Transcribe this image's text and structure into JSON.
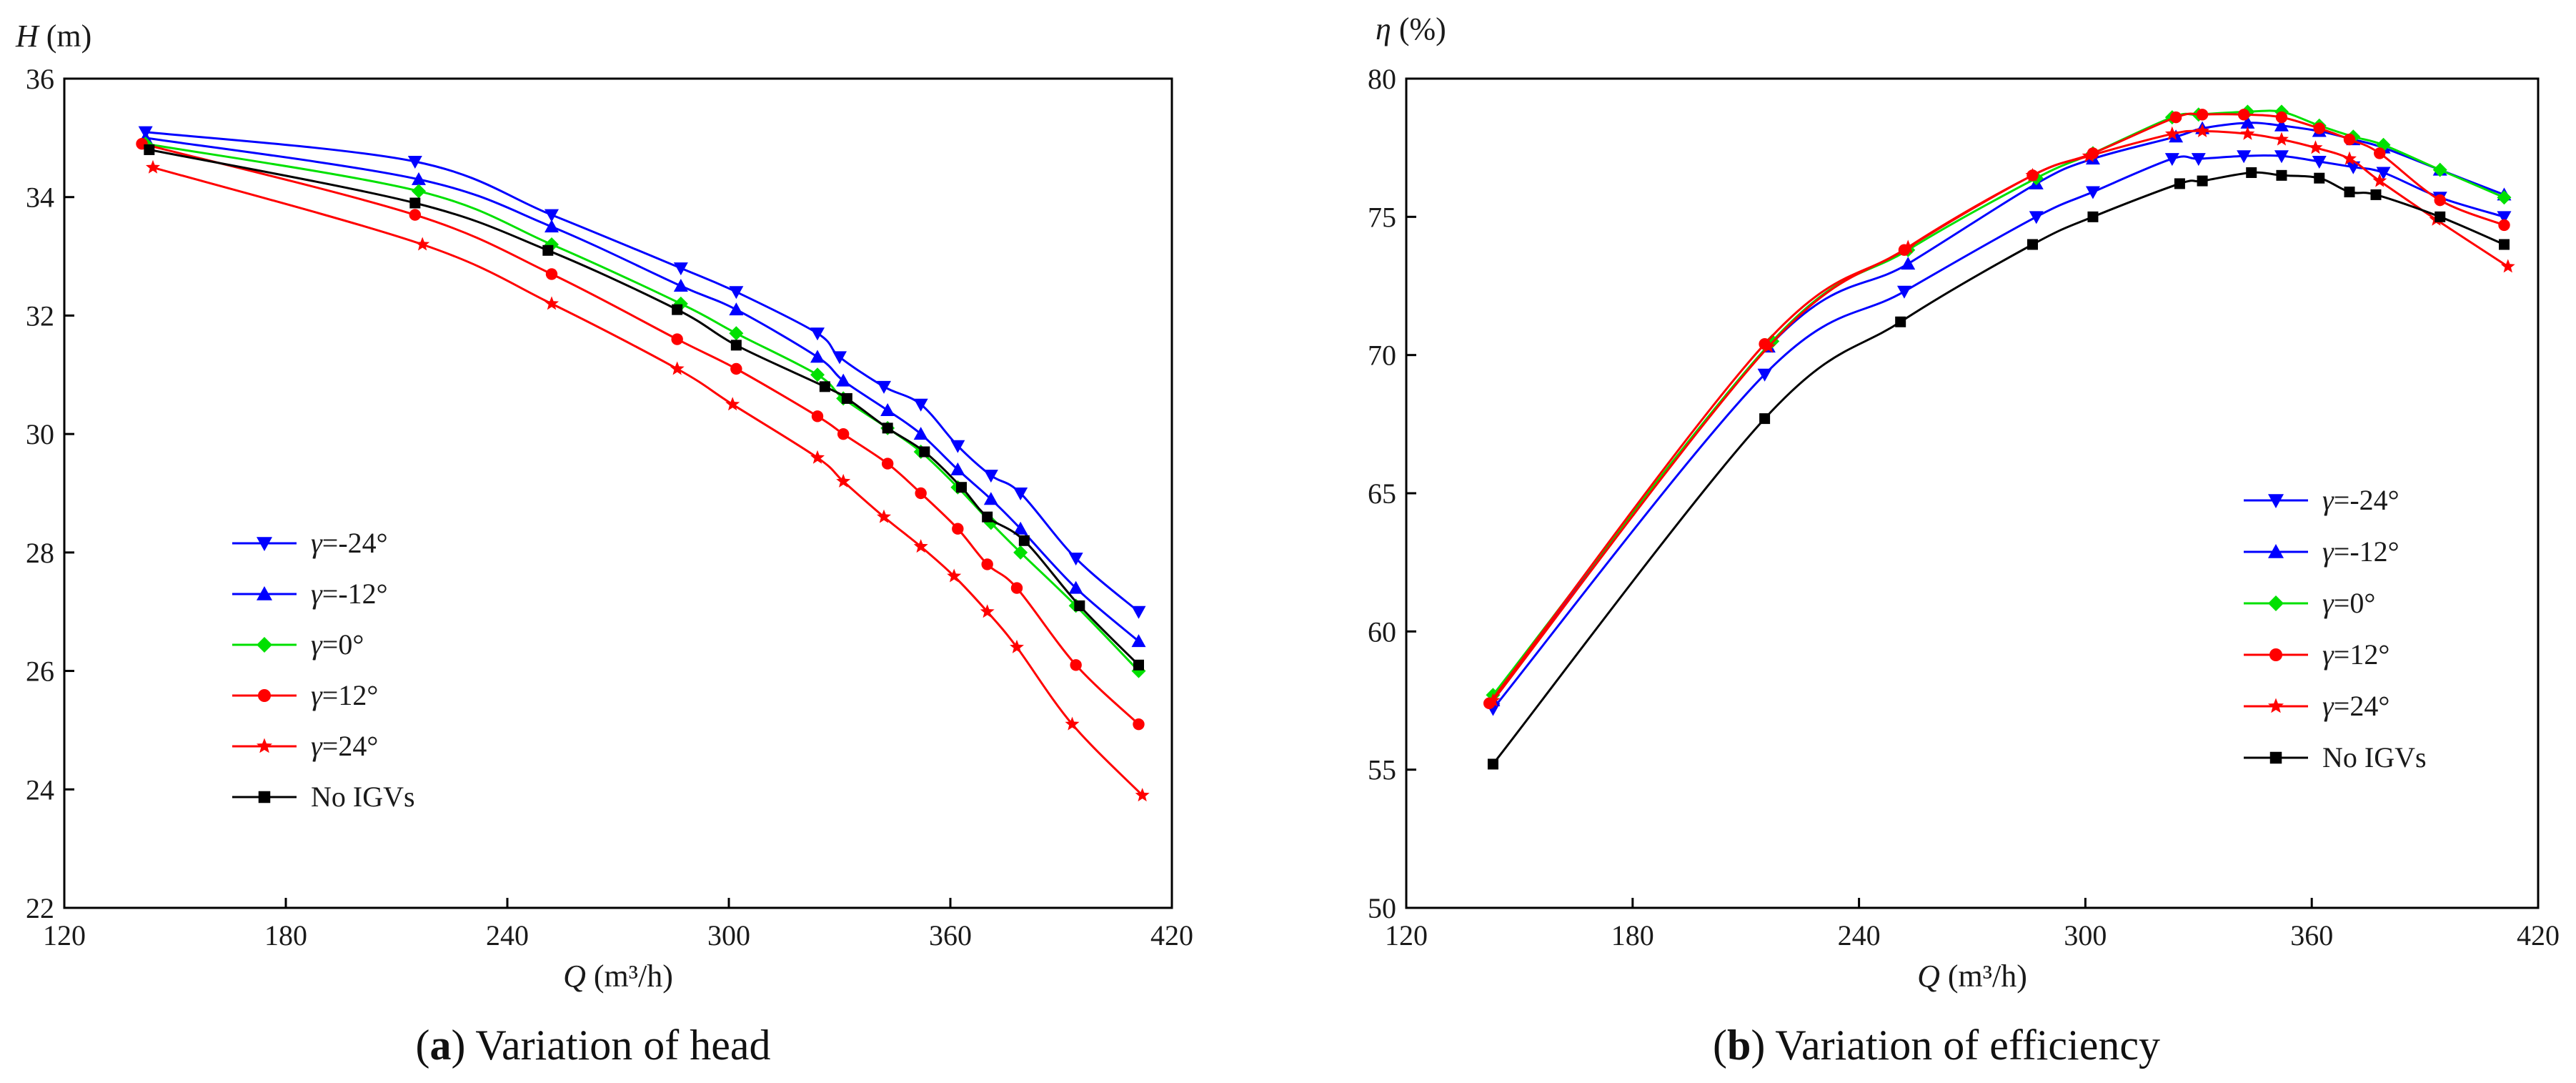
{
  "chart_data": [
    {
      "type": "line",
      "caption_letter": "a",
      "caption_text": "Variation of head",
      "y_symbol": "H",
      "y_unit": " (m)",
      "x_symbol": "Q",
      "x_unit": "(m³/h)",
      "xlim": [
        120,
        420
      ],
      "ylim": [
        22,
        36
      ],
      "x_ticks": [
        120,
        180,
        240,
        300,
        360,
        420
      ],
      "y_ticks": [
        22,
        24,
        26,
        28,
        30,
        32,
        34,
        36
      ],
      "legend_position": "left-middle",
      "series": [
        {
          "name": "γ=-24°",
          "color": "#0000ff",
          "marker": "triangle-down",
          "x": [
            142,
            215,
            252,
            287,
            302,
            324,
            330,
            342,
            352,
            362,
            371,
            379,
            394,
            411
          ],
          "y": [
            35.1,
            34.6,
            33.7,
            32.8,
            32.4,
            31.7,
            31.3,
            30.8,
            30.5,
            29.8,
            29.3,
            29.0,
            27.9,
            27.0
          ]
        },
        {
          "name": "γ=-12°",
          "color": "#0000ff",
          "marker": "triangle-up",
          "x": [
            142,
            216,
            252,
            287,
            302,
            324,
            331,
            343,
            352,
            362,
            371,
            379,
            394,
            411
          ],
          "y": [
            35.0,
            34.3,
            33.5,
            32.5,
            32.1,
            31.3,
            30.9,
            30.4,
            30.0,
            29.4,
            28.9,
            28.4,
            27.4,
            26.5
          ]
        },
        {
          "name": "γ=0°",
          "color": "#00e000",
          "marker": "diamond",
          "x": [
            142,
            216,
            252,
            287,
            302,
            324,
            331,
            343,
            352,
            362,
            371,
            379,
            394,
            411
          ],
          "y": [
            34.9,
            34.1,
            33.2,
            32.2,
            31.7,
            31.0,
            30.6,
            30.1,
            29.7,
            29.1,
            28.5,
            28.0,
            27.1,
            26.0
          ]
        },
        {
          "name": "γ=12°",
          "color": "#ff0000",
          "marker": "circle",
          "x": [
            141,
            215,
            252,
            286,
            302,
            324,
            331,
            343,
            352,
            362,
            370,
            378,
            394,
            411
          ],
          "y": [
            34.9,
            33.7,
            32.7,
            31.6,
            31.1,
            30.3,
            30.0,
            29.5,
            29.0,
            28.4,
            27.8,
            27.4,
            26.1,
            25.1
          ]
        },
        {
          "name": "γ=24°",
          "color": "#ff0000",
          "marker": "star",
          "x": [
            144,
            217,
            252,
            286,
            301,
            324,
            331,
            342,
            352,
            361,
            370,
            378,
            393,
            412
          ],
          "y": [
            34.5,
            33.2,
            32.2,
            31.1,
            30.5,
            29.6,
            29.2,
            28.6,
            28.1,
            27.6,
            27.0,
            26.4,
            25.1,
            23.9
          ]
        },
        {
          "name": "No IGVs",
          "color": "#000000",
          "marker": "square",
          "x": [
            143,
            215,
            251,
            286,
            302,
            326,
            332,
            343,
            353,
            363,
            370,
            380,
            395,
            411
          ],
          "y": [
            34.8,
            33.9,
            33.1,
            32.1,
            31.5,
            30.8,
            30.6,
            30.1,
            29.7,
            29.1,
            28.6,
            28.2,
            27.1,
            26.1
          ]
        }
      ]
    },
    {
      "type": "line",
      "caption_letter": "b",
      "caption_text": "Variation of efficiency",
      "y_symbol": "η",
      "y_unit": " (%)",
      "x_symbol": "Q",
      "x_unit": "(m³/h)",
      "xlim": [
        120,
        420
      ],
      "ylim": [
        50,
        80
      ],
      "x_ticks": [
        120,
        180,
        240,
        300,
        360,
        420
      ],
      "y_ticks": [
        50,
        55,
        60,
        65,
        70,
        75,
        80
      ],
      "legend_position": "right-middle",
      "series": [
        {
          "name": "γ=-24°",
          "color": "#0000ff",
          "marker": "triangle-down",
          "x": [
            143,
            215,
            252,
            287,
            302,
            323,
            330,
            342,
            352,
            362,
            371,
            379,
            394,
            411
          ],
          "y": [
            57.2,
            69.3,
            72.3,
            75.0,
            75.9,
            77.1,
            77.1,
            77.2,
            77.2,
            77.0,
            76.8,
            76.6,
            75.7,
            75.0
          ]
        },
        {
          "name": "γ=-12°",
          "color": "#0000ff",
          "marker": "triangle-up",
          "x": [
            143,
            216,
            253,
            287,
            302,
            324,
            331,
            343,
            352,
            362,
            371,
            379,
            394,
            411
          ],
          "y": [
            57.5,
            70.3,
            73.3,
            76.2,
            77.1,
            77.9,
            78.2,
            78.4,
            78.3,
            78.1,
            77.8,
            77.5,
            76.7,
            75.8
          ]
        },
        {
          "name": "γ=0°",
          "color": "#00e000",
          "marker": "diamond",
          "x": [
            143,
            217,
            253,
            287,
            302,
            323,
            330,
            343,
            352,
            362,
            371,
            379,
            394,
            411
          ],
          "y": [
            57.7,
            70.5,
            73.8,
            76.4,
            77.3,
            78.6,
            78.7,
            78.8,
            78.8,
            78.3,
            77.9,
            77.6,
            76.7,
            75.7
          ]
        },
        {
          "name": "γ=12°",
          "color": "#ff0000",
          "marker": "circle",
          "x": [
            142,
            215,
            252,
            286,
            302,
            324,
            331,
            342,
            352,
            362,
            370,
            378,
            394,
            411
          ],
          "y": [
            57.4,
            70.4,
            73.8,
            76.5,
            77.3,
            78.6,
            78.7,
            78.7,
            78.6,
            78.2,
            77.8,
            77.3,
            75.6,
            74.7
          ]
        },
        {
          "name": "γ=24°",
          "color": "#ff0000",
          "marker": "star",
          "x": [
            143,
            216,
            253,
            286,
            301,
            323,
            331,
            343,
            352,
            361,
            370,
            378,
            393,
            412
          ],
          "y": [
            57.5,
            70.3,
            73.9,
            76.5,
            77.2,
            78.0,
            78.1,
            78.0,
            77.8,
            77.5,
            77.1,
            76.3,
            74.9,
            73.2
          ]
        },
        {
          "name": "No IGVs",
          "color": "#000000",
          "marker": "square",
          "x": [
            143,
            215,
            251,
            286,
            302,
            325,
            331,
            344,
            352,
            362,
            370,
            377,
            394,
            411
          ],
          "y": [
            55.2,
            67.7,
            71.2,
            74.0,
            75.0,
            76.2,
            76.3,
            76.6,
            76.5,
            76.4,
            75.9,
            75.8,
            75.0,
            74.0
          ]
        }
      ]
    }
  ]
}
